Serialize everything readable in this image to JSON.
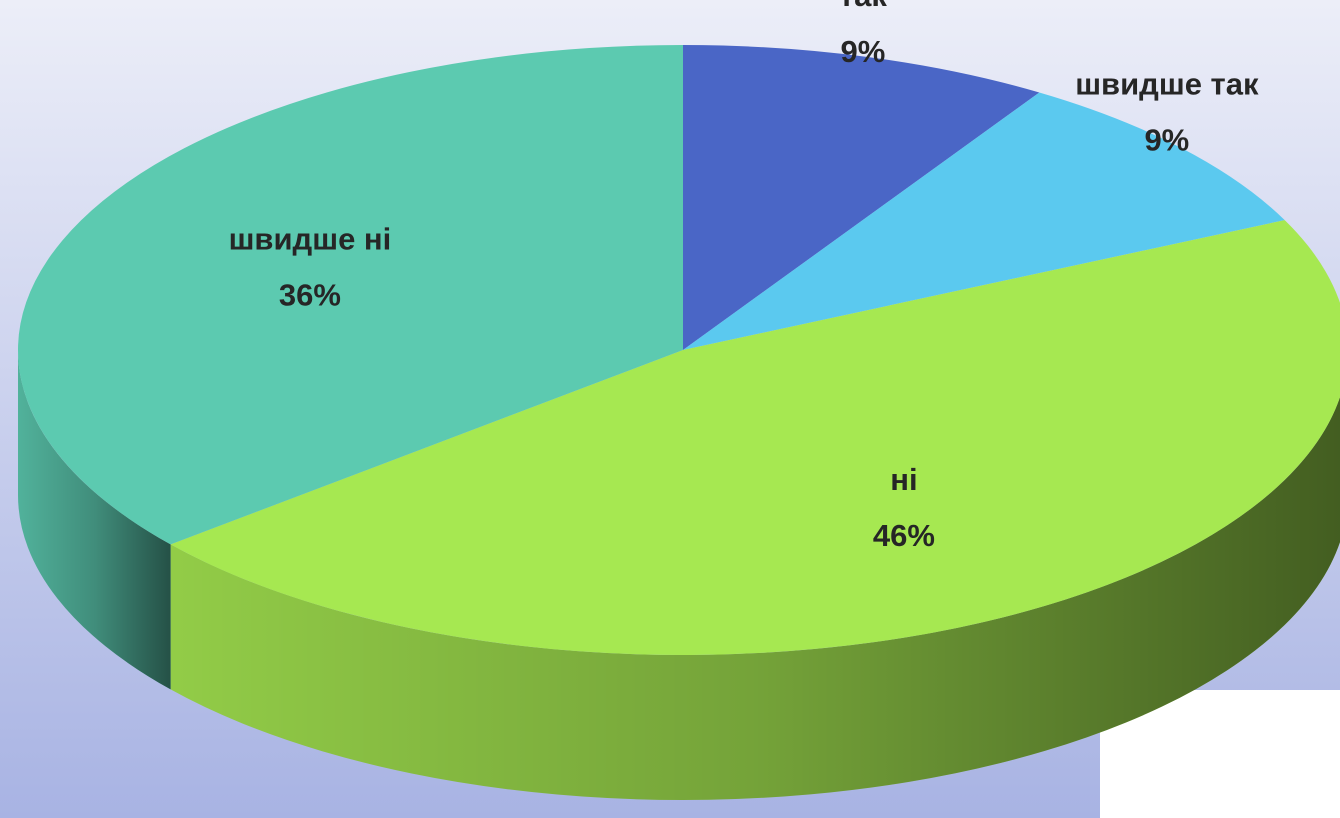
{
  "chart_data": {
    "type": "pie",
    "categories": [
      "так",
      "швидше так",
      "ні",
      "швидше ні"
    ],
    "values": [
      9,
      9,
      46,
      36
    ],
    "value_labels": [
      "9%",
      "9%",
      "46%",
      "36%"
    ],
    "colors": [
      "#4a66c6",
      "#5bc9ef",
      "#a6e851",
      "#5ccab0"
    ]
  }
}
